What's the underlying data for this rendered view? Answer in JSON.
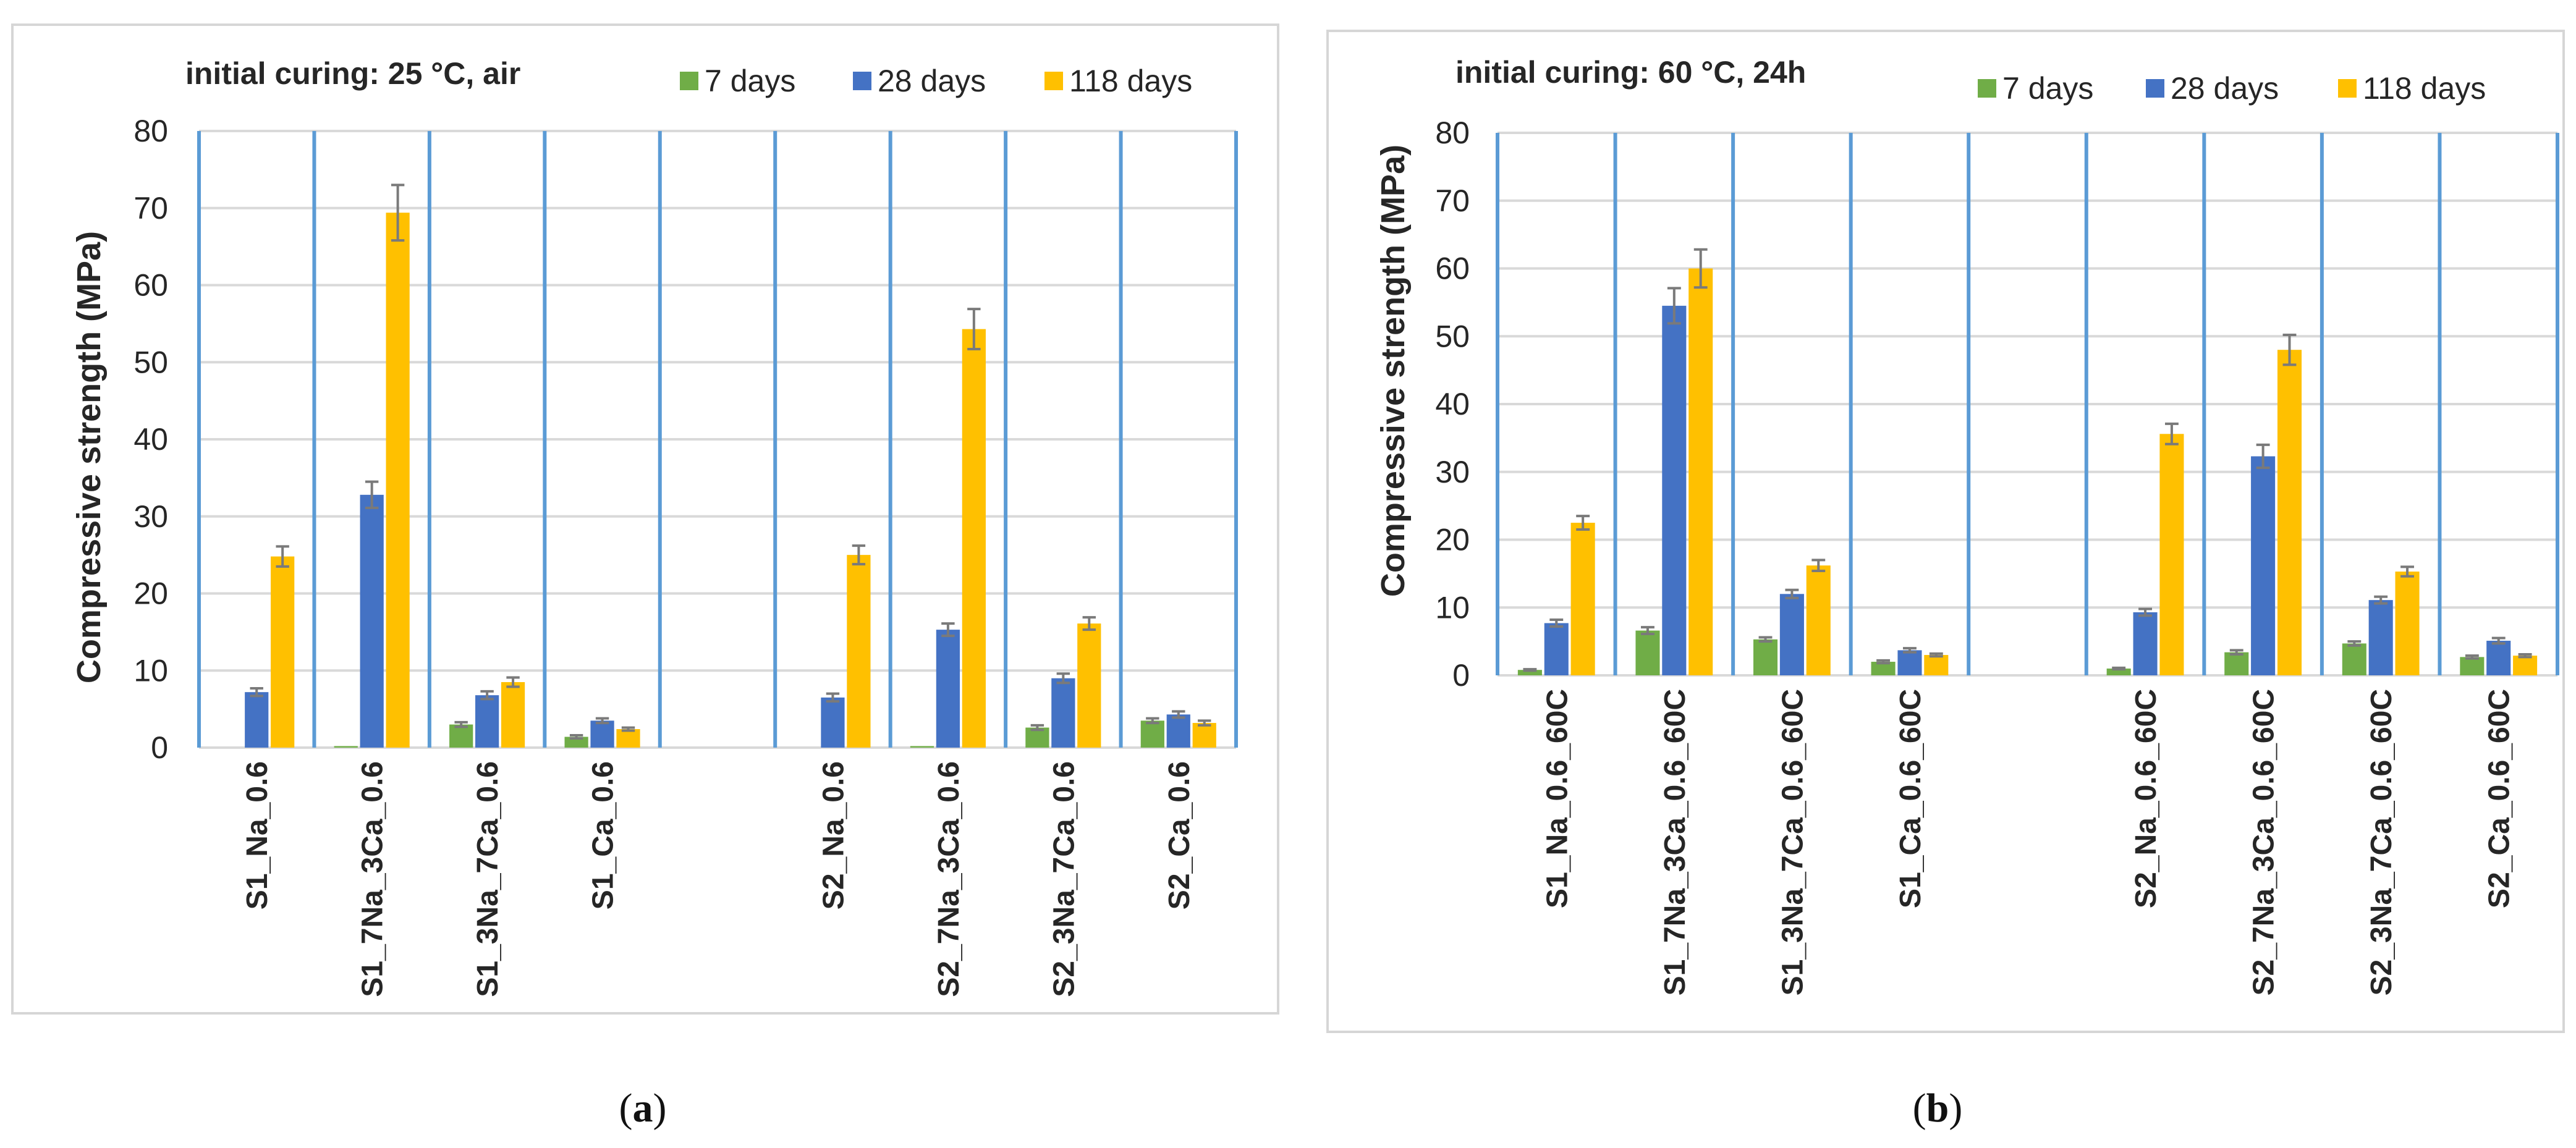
{
  "colors": {
    "d7": "#70ad47",
    "d28": "#4472c4",
    "d118": "#ffc000",
    "separator": "#5b9bd5"
  },
  "chart_data": [
    {
      "type": "bar",
      "panel": "a",
      "title": "initial curing: 25 °C, air",
      "xlabel": "",
      "ylabel": "Compressive strength (MPa)",
      "ylim": [
        0,
        80
      ],
      "yticks": [
        0,
        10,
        20,
        30,
        40,
        50,
        60,
        70,
        80
      ],
      "grid": true,
      "legend_position": "top-right",
      "categories": [
        "S1_Na_0.6",
        "S1_7Na_3Ca_0.6",
        "S1_3Na_7Ca_0.6",
        "S1_Ca_0.6",
        "",
        "S2_Na_0.6",
        "S2_7Na_3Ca_0.6",
        "S2_3Na_7Ca_0.6",
        "S2_Ca_0.6"
      ],
      "series": [
        {
          "name": "7 days",
          "color": "#70ad47",
          "values": [
            0,
            0.2,
            3.0,
            1.4,
            null,
            0,
            0.2,
            2.6,
            3.5
          ],
          "errors": [
            0,
            0,
            0.3,
            0.2,
            null,
            0,
            0,
            0.3,
            0.3
          ]
        },
        {
          "name": "28 days",
          "color": "#4472c4",
          "values": [
            7.2,
            32.8,
            6.8,
            3.5,
            null,
            6.5,
            15.3,
            9.0,
            4.3
          ],
          "errors": [
            0.5,
            1.7,
            0.5,
            0.3,
            null,
            0.5,
            0.8,
            0.6,
            0.4
          ]
        },
        {
          "name": "118 days",
          "color": "#ffc000",
          "values": [
            24.8,
            69.4,
            8.5,
            2.4,
            null,
            25.0,
            54.3,
            16.1,
            3.2
          ],
          "errors": [
            1.3,
            3.6,
            0.6,
            0.2,
            null,
            1.2,
            2.6,
            0.8,
            0.3
          ]
        }
      ],
      "panel_label": "a"
    },
    {
      "type": "bar",
      "panel": "b",
      "title": "initial curing: 60 °C, 24h",
      "xlabel": "",
      "ylabel": "Compressive strength (MPa)",
      "ylim": [
        0,
        80
      ],
      "yticks": [
        0,
        10,
        20,
        30,
        40,
        50,
        60,
        70,
        80
      ],
      "grid": true,
      "legend_position": "top-right",
      "categories": [
        "S1_Na_0.6_60C",
        "S1_7Na_3Ca_0.6_60C",
        "S1_3Na_7Ca_0.6_60C",
        "S1_Ca_0.6_60C",
        "",
        "S2_Na_0.6_60C",
        "S2_7Na_3Ca_0.6_60C",
        "S2_3Na_7Ca_0.6_60C",
        "S2_Ca_0.6_60C"
      ],
      "series": [
        {
          "name": "7 days",
          "color": "#70ad47",
          "values": [
            0.8,
            6.6,
            5.3,
            2.0,
            null,
            1.0,
            3.4,
            4.7,
            2.7
          ],
          "errors": [
            0.1,
            0.5,
            0.3,
            0.2,
            null,
            0.1,
            0.3,
            0.3,
            0.2
          ]
        },
        {
          "name": "28 days",
          "color": "#4472c4",
          "values": [
            7.7,
            54.5,
            12.0,
            3.7,
            null,
            9.3,
            32.3,
            11.1,
            5.1
          ],
          "errors": [
            0.5,
            2.6,
            0.6,
            0.3,
            null,
            0.5,
            1.7,
            0.5,
            0.4
          ]
        },
        {
          "name": "118 days",
          "color": "#ffc000",
          "values": [
            22.5,
            60.0,
            16.2,
            3.0,
            null,
            35.6,
            48.0,
            15.3,
            2.9
          ],
          "errors": [
            1.0,
            2.8,
            0.8,
            0.2,
            null,
            1.5,
            2.2,
            0.7,
            0.2
          ]
        }
      ],
      "panel_label": "b"
    }
  ]
}
